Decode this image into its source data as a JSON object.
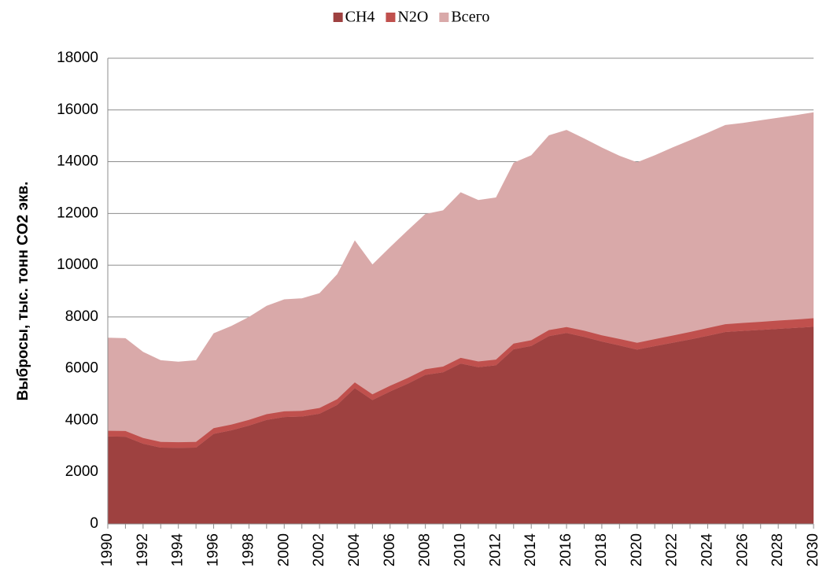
{
  "chart_data": {
    "type": "area",
    "y_label": "Выбросы, тыс. тонн CO2 экв.",
    "x": [
      1990,
      1991,
      1992,
      1993,
      1994,
      1995,
      1996,
      1997,
      1998,
      1999,
      2000,
      2001,
      2002,
      2003,
      2004,
      2005,
      2006,
      2007,
      2008,
      2009,
      2010,
      2011,
      2012,
      2013,
      2014,
      2015,
      2016,
      2017,
      2018,
      2019,
      2020,
      2021,
      2022,
      2023,
      2024,
      2025,
      2026,
      2027,
      2028,
      2029,
      2030
    ],
    "xlim": [
      1990,
      2030
    ],
    "xticks": [
      1990,
      1992,
      1994,
      1996,
      1998,
      2000,
      2002,
      2004,
      2006,
      2008,
      2010,
      2012,
      2014,
      2016,
      2018,
      2020,
      2022,
      2024,
      2026,
      2028,
      2030
    ],
    "ylim": [
      0,
      18000
    ],
    "yticks": [
      0,
      2000,
      4000,
      6000,
      8000,
      10000,
      12000,
      14000,
      16000,
      18000
    ],
    "grid": true,
    "legend": "top",
    "series": [
      {
        "name": "CH4",
        "color": "#9e4140",
        "stack": true,
        "values": [
          3380,
          3370,
          3100,
          2950,
          2940,
          2950,
          3480,
          3620,
          3800,
          4020,
          4130,
          4150,
          4260,
          4600,
          5250,
          4790,
          5120,
          5420,
          5760,
          5860,
          6200,
          6060,
          6130,
          6750,
          6880,
          7260,
          7380,
          7230,
          7050,
          6900,
          6740,
          6870,
          7000,
          7130,
          7270,
          7420,
          7460,
          7500,
          7540,
          7580,
          7620
        ]
      },
      {
        "name": "N2O",
        "color": "#c0504d",
        "stack": true,
        "values": [
          220,
          220,
          220,
          220,
          220,
          220,
          220,
          220,
          220,
          220,
          220,
          220,
          220,
          220,
          220,
          220,
          220,
          220,
          220,
          220,
          220,
          220,
          220,
          220,
          220,
          230,
          230,
          240,
          240,
          250,
          260,
          270,
          280,
          290,
          300,
          300,
          310,
          310,
          320,
          320,
          330
        ]
      },
      {
        "name": "Всего",
        "color": "#d9a9a9",
        "stack": false,
        "values": [
          7200,
          7180,
          6650,
          6330,
          6270,
          6330,
          7370,
          7650,
          8000,
          8430,
          8680,
          8720,
          8920,
          9650,
          10960,
          10030,
          10700,
          11350,
          11980,
          12120,
          12820,
          12520,
          12620,
          13960,
          14250,
          15020,
          15230,
          14900,
          14550,
          14230,
          13980,
          14250,
          14550,
          14830,
          15120,
          15420,
          15500,
          15600,
          15700,
          15800,
          15910
        ]
      }
    ]
  }
}
